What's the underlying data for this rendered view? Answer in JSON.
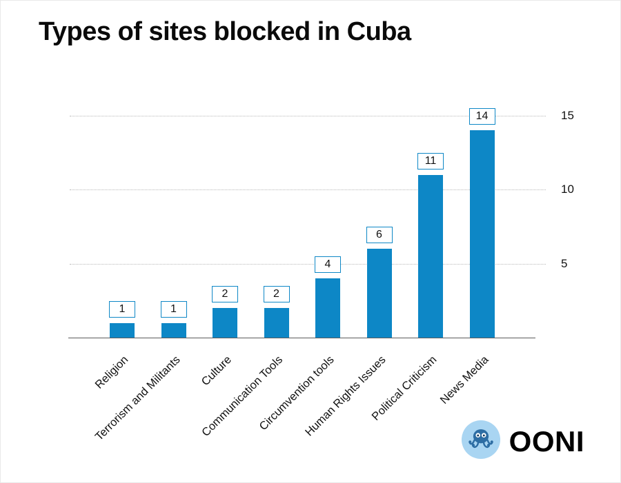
{
  "title": "Types of sites blocked in Cuba",
  "chart_data": {
    "type": "bar",
    "title": "Types of sites blocked in Cuba",
    "categories": [
      "Religion",
      "Terrorism and Militants",
      "Culture",
      "Communication Tools",
      "Circumvention tools",
      "Human Rights Issues",
      "Political Criticism",
      "News Media"
    ],
    "values": [
      1,
      1,
      2,
      2,
      4,
      6,
      11,
      14
    ],
    "xlabel": "",
    "ylabel": "",
    "ylim": [
      0,
      15
    ],
    "yticks": [
      5,
      10,
      15
    ],
    "ytick_side": "right",
    "grid": "horizontal-dotted",
    "data_labels": true,
    "data_label_style": "boxed"
  },
  "colors": {
    "bar": "#0d87c6",
    "label_box_border": "#0d87c6",
    "gridline": "#b8b8b8",
    "axis": "#5a5a5a",
    "logo_circle": "#a9d5f2",
    "logo_octopus": "#2d6da3"
  },
  "logo": {
    "text": "OONI",
    "icon": "octopus-icon"
  }
}
